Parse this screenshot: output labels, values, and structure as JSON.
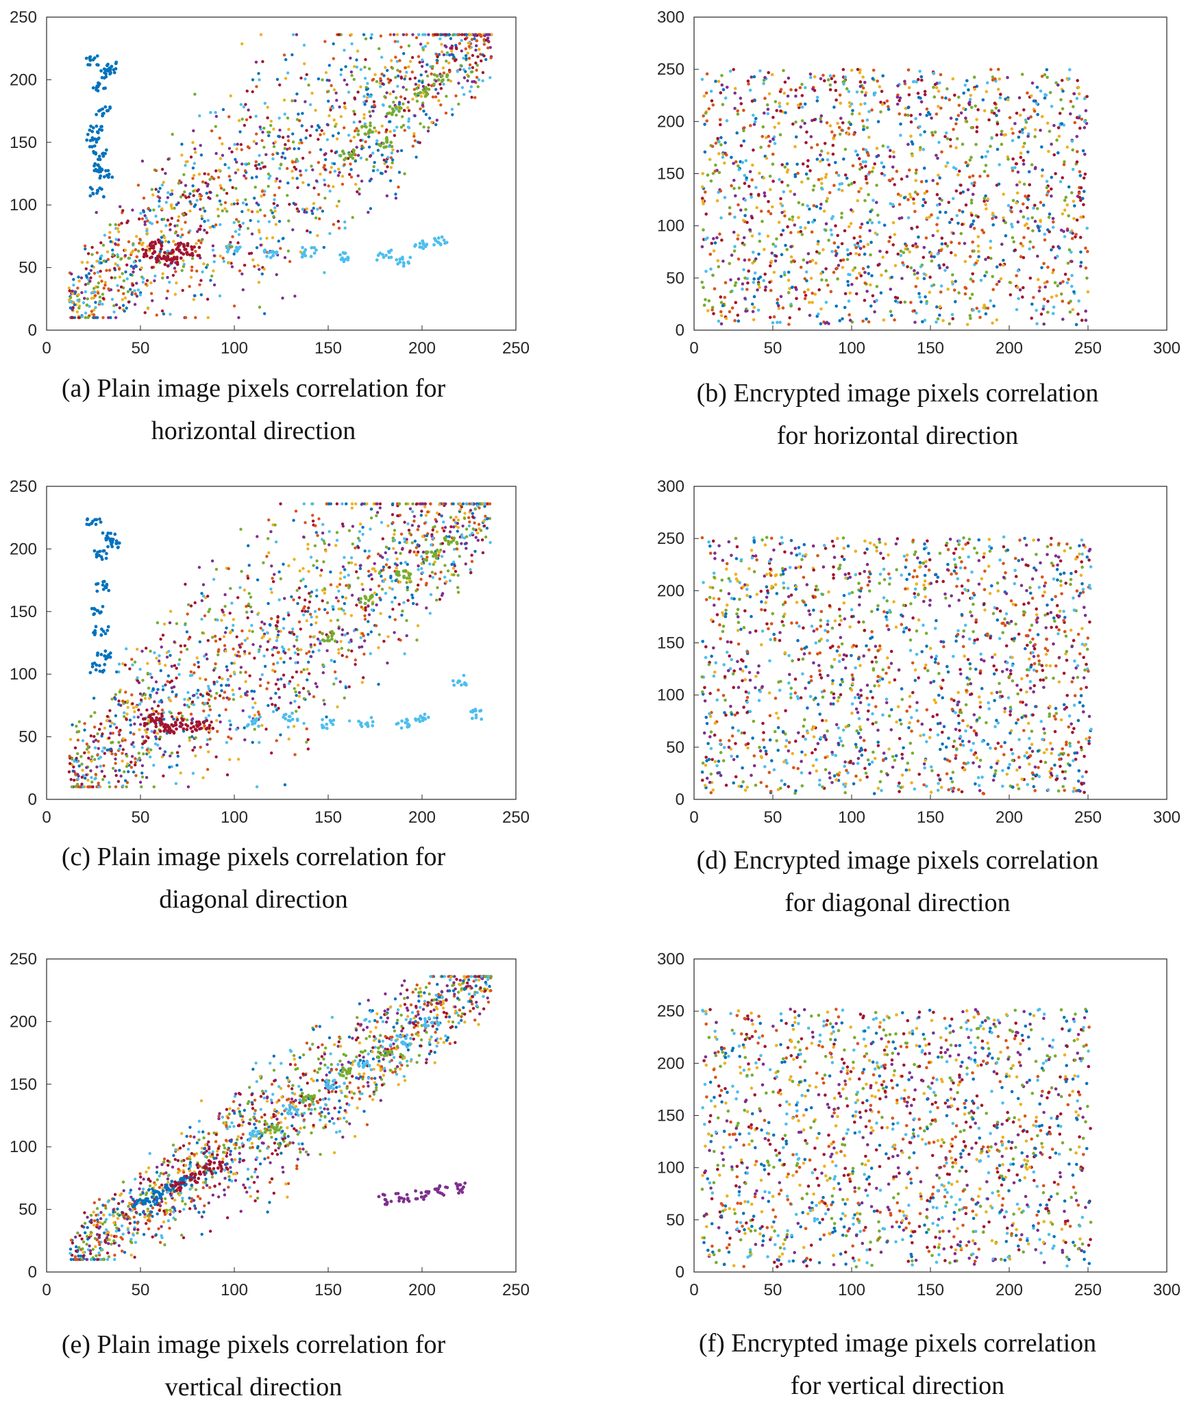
{
  "colors": [
    "#0072BD",
    "#D95319",
    "#EDB120",
    "#7E2F8E",
    "#77AC30",
    "#4DBEEE",
    "#A2142F"
  ],
  "chart_data": [
    {
      "id": "a",
      "type": "scatter",
      "caption": "(a) Plain image pixels correlation for\nhorizontal direction",
      "xlim": [
        0,
        250
      ],
      "ylim": [
        0,
        250
      ],
      "xticks": [
        0,
        50,
        100,
        150,
        200,
        250
      ],
      "yticks": [
        0,
        50,
        100,
        150,
        200,
        250
      ],
      "pattern": "correlated-band",
      "series": [
        {
          "color_index": 0,
          "points": [
            [
              25,
              215
            ],
            [
              28,
              195
            ],
            [
              30,
              175
            ],
            [
              26,
              160
            ],
            [
              29,
              140
            ],
            [
              31,
              125
            ],
            [
              27,
              110
            ],
            [
              33,
              205
            ],
            [
              35,
              210
            ],
            [
              24,
              150
            ],
            [
              28,
              130
            ]
          ]
        },
        {
          "color_index": 6,
          "points": [
            [
              55,
              62
            ],
            [
              62,
              58
            ],
            [
              70,
              60
            ],
            [
              78,
              63
            ],
            [
              66,
              55
            ],
            [
              58,
              68
            ],
            [
              72,
              66
            ]
          ]
        },
        {
          "color_index": 5,
          "points": [
            [
              100,
              65
            ],
            [
              120,
              60
            ],
            [
              140,
              62
            ],
            [
              160,
              58
            ],
            [
              180,
              60
            ],
            [
              200,
              68
            ],
            [
              210,
              72
            ],
            [
              190,
              55
            ]
          ]
        },
        {
          "color_index": 4,
          "points": [
            [
              170,
              160
            ],
            [
              185,
              175
            ],
            [
              200,
              190
            ],
            [
              210,
              200
            ],
            [
              180,
              150
            ],
            [
              160,
              140
            ]
          ]
        }
      ]
    },
    {
      "id": "b",
      "type": "scatter",
      "caption": "(b) Encrypted image pixels correlation\nfor horizontal direction",
      "xlim": [
        0,
        300
      ],
      "ylim": [
        0,
        300
      ],
      "xticks": [
        0,
        50,
        100,
        150,
        200,
        250,
        300
      ],
      "yticks": [
        0,
        50,
        100,
        150,
        200,
        250,
        300
      ],
      "pattern": "uniform-block",
      "data_range": [
        [
          5,
          250
        ],
        [
          5,
          250
        ]
      ],
      "series": []
    },
    {
      "id": "c",
      "type": "scatter",
      "caption": "(c) Plain image pixels correlation for\ndiagonal  direction",
      "xlim": [
        0,
        250
      ],
      "ylim": [
        0,
        250
      ],
      "xticks": [
        0,
        50,
        100,
        150,
        200,
        250
      ],
      "yticks": [
        0,
        50,
        100,
        150,
        200,
        250
      ],
      "pattern": "correlated-band",
      "series": [
        {
          "color_index": 0,
          "points": [
            [
              25,
              220
            ],
            [
              28,
              195
            ],
            [
              30,
              170
            ],
            [
              26,
              150
            ],
            [
              29,
              135
            ],
            [
              31,
              115
            ],
            [
              27,
              105
            ],
            [
              33,
              210
            ],
            [
              35,
              205
            ]
          ]
        },
        {
          "color_index": 6,
          "points": [
            [
              55,
              62
            ],
            [
              62,
              58
            ],
            [
              70,
              60
            ],
            [
              78,
              58
            ],
            [
              66,
              56
            ],
            [
              58,
              66
            ],
            [
              85,
              60
            ]
          ]
        },
        {
          "color_index": 5,
          "points": [
            [
              110,
              62
            ],
            [
              130,
              65
            ],
            [
              150,
              60
            ],
            [
              170,
              62
            ],
            [
              190,
              60
            ],
            [
              200,
              65
            ],
            [
              220,
              95
            ],
            [
              230,
              68
            ]
          ]
        },
        {
          "color_index": 4,
          "points": [
            [
              170,
              160
            ],
            [
              190,
              180
            ],
            [
              205,
              195
            ],
            [
              215,
              205
            ],
            [
              150,
              130
            ]
          ]
        }
      ]
    },
    {
      "id": "d",
      "type": "scatter",
      "caption": "(d) Encrypted image pixels correlation\nfor diagonal direction",
      "xlim": [
        0,
        300
      ],
      "ylim": [
        0,
        300
      ],
      "xticks": [
        0,
        50,
        100,
        150,
        200,
        250,
        300
      ],
      "yticks": [
        0,
        50,
        100,
        150,
        200,
        250,
        300
      ],
      "pattern": "uniform-block",
      "data_range": [
        [
          5,
          252
        ],
        [
          5,
          252
        ]
      ],
      "series": []
    },
    {
      "id": "e",
      "type": "scatter",
      "caption": "(e) Plain image pixels correlation for\nvertical direction",
      "xlim": [
        0,
        250
      ],
      "ylim": [
        0,
        250
      ],
      "xticks": [
        0,
        50,
        100,
        150,
        200,
        250
      ],
      "yticks": [
        0,
        50,
        100,
        150,
        200,
        250
      ],
      "pattern": "narrow-band",
      "series": [
        {
          "color_index": 0,
          "points": [
            [
              50,
              55
            ],
            [
              55,
              58
            ],
            [
              60,
              62
            ],
            [
              65,
              66
            ],
            [
              70,
              70
            ],
            [
              75,
              73
            ]
          ]
        },
        {
          "color_index": 6,
          "points": [
            [
              70,
              68
            ],
            [
              78,
              75
            ],
            [
              85,
              82
            ],
            [
              90,
              85
            ]
          ]
        },
        {
          "color_index": 5,
          "points": [
            [
              110,
              110
            ],
            [
              130,
              130
            ],
            [
              150,
              150
            ],
            [
              170,
              165
            ],
            [
              190,
              185
            ],
            [
              205,
              200
            ]
          ]
        },
        {
          "color_index": 4,
          "points": [
            [
              120,
              115
            ],
            [
              140,
              140
            ],
            [
              160,
              160
            ],
            [
              180,
              175
            ]
          ]
        },
        {
          "color_index": 3,
          "points": [
            [
              180,
              58
            ],
            [
              190,
              60
            ],
            [
              200,
              62
            ],
            [
              210,
              65
            ],
            [
              220,
              67
            ]
          ]
        }
      ]
    },
    {
      "id": "f",
      "type": "scatter",
      "caption": "(f) Encrypted image pixels correlation\nfor vertical direction",
      "xlim": [
        0,
        300
      ],
      "ylim": [
        0,
        300
      ],
      "xticks": [
        0,
        50,
        100,
        150,
        200,
        250,
        300
      ],
      "yticks": [
        0,
        50,
        100,
        150,
        200,
        250,
        300
      ],
      "pattern": "uniform-block",
      "data_range": [
        [
          5,
          252
        ],
        [
          5,
          252
        ]
      ],
      "series": []
    }
  ]
}
